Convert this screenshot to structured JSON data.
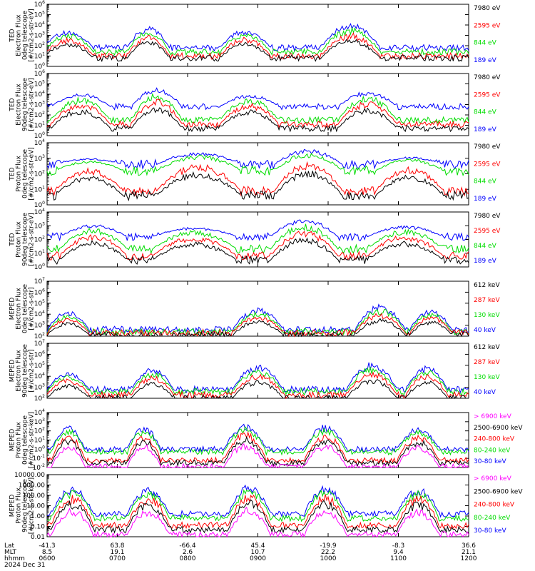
{
  "colors": {
    "black": "#000000",
    "red": "#ff0000",
    "green": "#00dd00",
    "blue": "#0000ff",
    "magenta": "#ff00ff"
  },
  "footer": {
    "row_labels": [
      "Lat",
      "MLT",
      "hhmm",
      "2024 Dec 31"
    ],
    "ticks": [
      {
        "lat": "-41.3",
        "mlt": "8.5",
        "hhmm": "0600"
      },
      {
        "lat": "63.8",
        "mlt": "19.1",
        "hhmm": "0700"
      },
      {
        "lat": "-66.4",
        "mlt": "2.6",
        "hhmm": "0800"
      },
      {
        "lat": "45.4",
        "mlt": "10.7",
        "hhmm": "0900"
      },
      {
        "lat": "-19.9",
        "mlt": "22.2",
        "hhmm": "1000"
      },
      {
        "lat": "-8.3",
        "mlt": "9.4",
        "hhmm": "1100"
      },
      {
        "lat": "36.6",
        "mlt": "21.1",
        "hhmm": "1200"
      }
    ]
  },
  "chart_data": [
    {
      "type": "line",
      "ylabel": [
        "TED",
        "Electron Flux",
        "0deg telescope",
        "[#/cm2-s-str-eV]"
      ],
      "yscale": "log",
      "ylim_exp": [
        0,
        6
      ],
      "ytick_labels": [
        "10^0",
        "10^1",
        "10^2",
        "10^3",
        "10^4",
        "10^5",
        "10^6"
      ],
      "legend": [
        {
          "label": "7980 eV",
          "color": "black"
        },
        {
          "label": "2595 eV",
          "color": "red"
        },
        {
          "label": "844 eV",
          "color": "green"
        },
        {
          "label": "189 eV",
          "color": "blue"
        }
      ],
      "baseline": {
        "black": 0.8,
        "red": 1.0,
        "green": 1.4,
        "blue": 1.8
      },
      "bursts": [
        {
          "x": 0.05,
          "w": 0.06,
          "peak": 3.5
        },
        {
          "x": 0.24,
          "w": 0.05,
          "peak": 3.9
        },
        {
          "x": 0.47,
          "w": 0.06,
          "peak": 3.6
        },
        {
          "x": 0.72,
          "w": 0.07,
          "peak": 4.2
        }
      ]
    },
    {
      "type": "line",
      "ylabel": [
        "TED",
        "Electron Flux",
        "90deg telescope",
        "[#/cm2-s-str-eV]"
      ],
      "yscale": "log",
      "ylim_exp": [
        0,
        6
      ],
      "ytick_labels": [
        "10^0",
        "10^1",
        "10^2",
        "10^3",
        "10^4",
        "10^5",
        "10^6"
      ],
      "legend": [
        {
          "label": "7980 eV",
          "color": "black"
        },
        {
          "label": "2595 eV",
          "color": "red"
        },
        {
          "label": "844 eV",
          "color": "green"
        },
        {
          "label": "189 eV",
          "color": "blue"
        }
      ],
      "baseline": {
        "black": 0.7,
        "red": 1.1,
        "green": 1.5,
        "blue": 2.8
      },
      "bursts": [
        {
          "x": 0.08,
          "w": 0.07,
          "peak": 4.1
        },
        {
          "x": 0.26,
          "w": 0.06,
          "peak": 4.6
        },
        {
          "x": 0.48,
          "w": 0.07,
          "peak": 4.0
        },
        {
          "x": 0.76,
          "w": 0.07,
          "peak": 4.3
        }
      ]
    },
    {
      "type": "line",
      "ylabel": [
        "TED",
        "Proton Flux",
        "0deg telescope",
        "[#/cm2-s-str-eV]"
      ],
      "yscale": "log",
      "ylim_exp": [
        0,
        4
      ],
      "ytick_labels": [
        "10^0",
        "10^1",
        "10^2",
        "10^3",
        "10^4"
      ],
      "legend": [
        {
          "label": "7980 eV",
          "color": "black"
        },
        {
          "label": "2595 eV",
          "color": "red"
        },
        {
          "label": "844 eV",
          "color": "green"
        },
        {
          "label": "189 eV",
          "color": "blue"
        }
      ],
      "baseline": {
        "black": 0.6,
        "red": 0.9,
        "green": 2.2,
        "blue": 2.6
      },
      "bursts": [
        {
          "x": 0.1,
          "w": 0.08,
          "peak": 3.0
        },
        {
          "x": 0.36,
          "w": 0.1,
          "peak": 3.4
        },
        {
          "x": 0.62,
          "w": 0.08,
          "peak": 3.6
        },
        {
          "x": 0.86,
          "w": 0.08,
          "peak": 3.1
        }
      ]
    },
    {
      "type": "line",
      "ylabel": [
        "TED",
        "Proton Flux",
        "90deg telescope",
        "[#/cm2-s-str-eV]"
      ],
      "yscale": "log",
      "ylim_exp": [
        0,
        4
      ],
      "ytick_labels": [
        "10^0",
        "10^1",
        "10^2",
        "10^3",
        "10^4"
      ],
      "legend": [
        {
          "label": "7980 eV",
          "color": "black"
        },
        {
          "label": "2595 eV",
          "color": "red"
        },
        {
          "label": "844 eV",
          "color": "green"
        },
        {
          "label": "189 eV",
          "color": "blue"
        }
      ],
      "baseline": {
        "black": 0.5,
        "red": 0.8,
        "green": 1.3,
        "blue": 2.2
      },
      "bursts": [
        {
          "x": 0.11,
          "w": 0.08,
          "peak": 3.1
        },
        {
          "x": 0.35,
          "w": 0.1,
          "peak": 2.9
        },
        {
          "x": 0.61,
          "w": 0.08,
          "peak": 3.5
        },
        {
          "x": 0.85,
          "w": 0.09,
          "peak": 3.0
        }
      ]
    },
    {
      "type": "line",
      "ylabel": [
        "MEPED",
        "Electron Flux",
        "0deg telescope",
        "[#/cm2-s-str]"
      ],
      "yscale": "log",
      "ylim_exp": [
        2,
        7
      ],
      "ytick_labels": [
        "10^2",
        "10^3",
        "10^4",
        "10^5",
        "10^6",
        "10^7"
      ],
      "legend": [
        {
          "label": "612 keV",
          "color": "black"
        },
        {
          "label": "287 keV",
          "color": "red"
        },
        {
          "label": "130 keV",
          "color": "green"
        },
        {
          "label": "40 keV",
          "color": "blue"
        }
      ],
      "baseline": {
        "black": 2.1,
        "red": 2.3,
        "green": 2.4,
        "blue": 2.6
      },
      "bursts": [
        {
          "x": 0.05,
          "w": 0.05,
          "peak": 4.3
        },
        {
          "x": 0.5,
          "w": 0.06,
          "peak": 4.6
        },
        {
          "x": 0.79,
          "w": 0.06,
          "peak": 4.9
        },
        {
          "x": 0.91,
          "w": 0.05,
          "peak": 4.5
        }
      ]
    },
    {
      "type": "line",
      "ylabel": [
        "MEPED",
        "Electron Flux",
        "90deg telescope",
        "[#/cm2-s-str]"
      ],
      "yscale": "log",
      "ylim_exp": [
        2,
        7
      ],
      "ytick_labels": [
        "10^2",
        "10^3",
        "10^4",
        "10^5",
        "10^6",
        "10^7"
      ],
      "legend": [
        {
          "label": "612 keV",
          "color": "black"
        },
        {
          "label": "287 keV",
          "color": "red"
        },
        {
          "label": "130 keV",
          "color": "green"
        },
        {
          "label": "40 keV",
          "color": "blue"
        }
      ],
      "baseline": {
        "black": 2.0,
        "red": 2.3,
        "green": 2.6,
        "blue": 2.8
      },
      "bursts": [
        {
          "x": 0.05,
          "w": 0.05,
          "peak": 4.4
        },
        {
          "x": 0.25,
          "w": 0.05,
          "peak": 4.8
        },
        {
          "x": 0.5,
          "w": 0.06,
          "peak": 5.1
        },
        {
          "x": 0.77,
          "w": 0.06,
          "peak": 5.3
        },
        {
          "x": 0.9,
          "w": 0.05,
          "peak": 5.0
        }
      ]
    },
    {
      "type": "line",
      "ylabel": [
        "MEPED",
        "Proton Flux",
        "0deg telescope",
        "[#/cm2-s-str-keV]"
      ],
      "yscale": "log",
      "ylim_exp": [
        -2,
        4
      ],
      "ytick_labels": [
        "10^-2",
        "10^-1",
        "10^0",
        "10^1",
        "10^2",
        "10^3",
        "10^4"
      ],
      "legend": [
        {
          "label": "> 6900 keV",
          "color": "magenta"
        },
        {
          "label": "2500-6900 keV",
          "color": "black"
        },
        {
          "label": "240-800 keV",
          "color": "red"
        },
        {
          "label": "80-240 keV",
          "color": "green"
        },
        {
          "label": "30-80 keV",
          "color": "blue"
        }
      ],
      "baseline": {
        "magenta": -1.9,
        "black": -1.5,
        "red": -1.2,
        "green": -0.3,
        "blue": 0.0
      },
      "bursts": [
        {
          "x": 0.05,
          "w": 0.04,
          "peak": 2.6
        },
        {
          "x": 0.23,
          "w": 0.04,
          "peak": 2.5
        },
        {
          "x": 0.47,
          "w": 0.05,
          "peak": 2.8
        },
        {
          "x": 0.66,
          "w": 0.05,
          "peak": 2.7
        },
        {
          "x": 0.88,
          "w": 0.05,
          "peak": 2.4
        }
      ]
    },
    {
      "type": "line",
      "ylabel": [
        "MEPED",
        "Proton Flux",
        "90deg telescope",
        "[#/cm2-s-str-keV]"
      ],
      "yscale": "log",
      "ylim_exp": [
        -2,
        4
      ],
      "ytick_labels": [
        "0.01",
        "0.10",
        "1.00",
        "10.00",
        "100.00",
        "1000.00",
        "10000.00"
      ],
      "legend": [
        {
          "label": "> 6900 keV",
          "color": "magenta"
        },
        {
          "label": "2500-6900 keV",
          "color": "black"
        },
        {
          "label": "240-800 keV",
          "color": "red"
        },
        {
          "label": "80-240 keV",
          "color": "green"
        },
        {
          "label": "30-80 keV",
          "color": "blue"
        }
      ],
      "baseline": {
        "magenta": -1.8,
        "black": -1.3,
        "red": -0.9,
        "green": -0.2,
        "blue": 0.2
      },
      "bursts": [
        {
          "x": 0.06,
          "w": 0.05,
          "peak": 2.9
        },
        {
          "x": 0.24,
          "w": 0.05,
          "peak": 2.8
        },
        {
          "x": 0.48,
          "w": 0.05,
          "peak": 3.1
        },
        {
          "x": 0.66,
          "w": 0.05,
          "peak": 3.0
        },
        {
          "x": 0.88,
          "w": 0.05,
          "peak": 2.8
        }
      ]
    }
  ]
}
